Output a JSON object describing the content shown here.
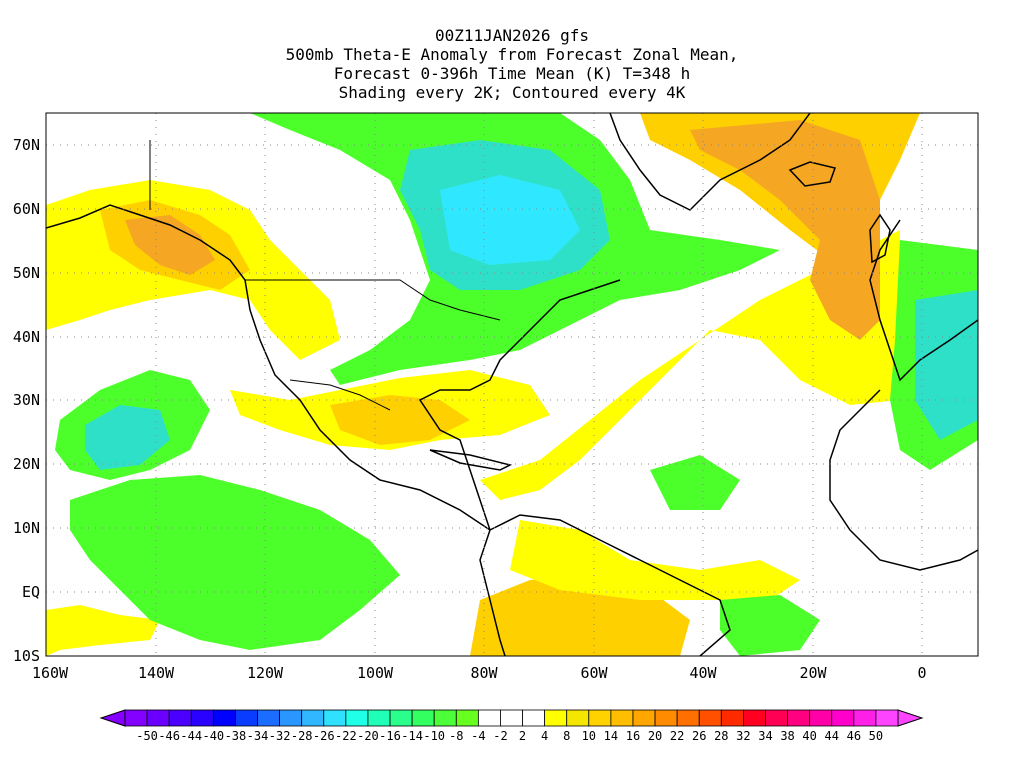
{
  "title": {
    "lines": [
      "00Z11JAN2026 gfs",
      "500mb Theta-E Anomaly from Forecast Zonal Mean,",
      "Forecast 0-396h Time Mean (K) T=348 h",
      "Shading every 2K; Contoured every 4K"
    ]
  },
  "map": {
    "lon_range": [
      -160,
      10
    ],
    "lat_range": [
      -10,
      75
    ],
    "lat_ticks": [
      "70N",
      "60N",
      "50N",
      "40N",
      "30N",
      "20N",
      "10N",
      "EQ",
      "10S"
    ],
    "lon_ticks": [
      "160W",
      "140W",
      "120W",
      "100W",
      "80W",
      "60W",
      "40W",
      "20W",
      "0"
    ],
    "grid": "dotted"
  },
  "colorbar": {
    "labels": [
      "-50",
      "-46",
      "-44",
      "-40",
      "-38",
      "-34",
      "-32",
      "-28",
      "-26",
      "-22",
      "-20",
      "-16",
      "-14",
      "-10",
      "-8",
      "-4",
      "-2",
      "2",
      "4",
      "8",
      "10",
      "14",
      "16",
      "20",
      "22",
      "26",
      "28",
      "32",
      "34",
      "38",
      "40",
      "44",
      "46",
      "50"
    ],
    "colors": [
      "#8400ff",
      "#6a00ff",
      "#4b00ff",
      "#2a00ff",
      "#0000ff",
      "#0a3cff",
      "#1a6dff",
      "#2a96ff",
      "#30b7ff",
      "#2fe0ff",
      "#20ffe8",
      "#20ffb8",
      "#2aff8c",
      "#34ff60",
      "#4dff38",
      "#66ff20",
      "#ffffff",
      "#ffffff",
      "#ffffff",
      "#ffff00",
      "#f5e600",
      "#ffd200",
      "#ffbe00",
      "#ffa600",
      "#ff8c00",
      "#ff7000",
      "#ff5000",
      "#ff2a00",
      "#ff0020",
      "#ff0055",
      "#ff0080",
      "#ff00a8",
      "#ff00cc",
      "#ff20e8",
      "#ff44ff"
    ]
  },
  "colors": {
    "green": "#4dff2a",
    "aqua": "#2fe0c8",
    "cyan": "#2fe8ff",
    "yellow": "#ffff00",
    "amber": "#ffd000",
    "orange": "#f5a623"
  }
}
